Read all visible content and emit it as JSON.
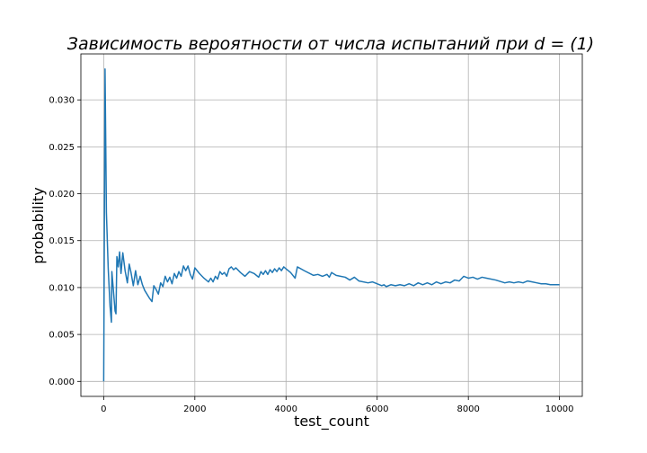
{
  "chart_data": {
    "type": "line",
    "title": "Зависимость вероятности от числа испытаний при d = (1)",
    "xlabel": "test_count",
    "ylabel": "probability",
    "xlim": [
      -500,
      10500
    ],
    "ylim": [
      -0.0016,
      0.0349
    ],
    "grid": true,
    "xticks": [
      0,
      2000,
      4000,
      6000,
      8000,
      10000
    ],
    "yticks": [
      0.0,
      0.005,
      0.01,
      0.015,
      0.02,
      0.025,
      0.03
    ],
    "xtick_labels": [
      "0",
      "2000",
      "4000",
      "6000",
      "8000",
      "10000"
    ],
    "ytick_labels": [
      "0.000",
      "0.005",
      "0.010",
      "0.015",
      "0.020",
      "0.025",
      "0.030"
    ],
    "series": [
      {
        "color": "#1f77b4",
        "points": [
          [
            1,
            0.0
          ],
          [
            30,
            0.0333
          ],
          [
            60,
            0.018
          ],
          [
            100,
            0.012
          ],
          [
            140,
            0.008
          ],
          [
            170,
            0.0063
          ],
          [
            180,
            0.0117
          ],
          [
            200,
            0.0105
          ],
          [
            250,
            0.0075
          ],
          [
            270,
            0.0072
          ],
          [
            290,
            0.0133
          ],
          [
            320,
            0.0122
          ],
          [
            350,
            0.0138
          ],
          [
            380,
            0.0115
          ],
          [
            420,
            0.0137
          ],
          [
            470,
            0.0118
          ],
          [
            520,
            0.0105
          ],
          [
            560,
            0.0125
          ],
          [
            600,
            0.0116
          ],
          [
            650,
            0.0102
          ],
          [
            700,
            0.0118
          ],
          [
            750,
            0.0103
          ],
          [
            800,
            0.0112
          ],
          [
            850,
            0.0103
          ],
          [
            900,
            0.0097
          ],
          [
            1000,
            0.0089
          ],
          [
            1060,
            0.0085
          ],
          [
            1100,
            0.0102
          ],
          [
            1150,
            0.0098
          ],
          [
            1200,
            0.0093
          ],
          [
            1250,
            0.0105
          ],
          [
            1300,
            0.0101
          ],
          [
            1350,
            0.0112
          ],
          [
            1400,
            0.0106
          ],
          [
            1450,
            0.0111
          ],
          [
            1500,
            0.0104
          ],
          [
            1550,
            0.0115
          ],
          [
            1600,
            0.011
          ],
          [
            1650,
            0.0117
          ],
          [
            1700,
            0.0112
          ],
          [
            1750,
            0.0123
          ],
          [
            1800,
            0.0118
          ],
          [
            1850,
            0.0123
          ],
          [
            1900,
            0.0114
          ],
          [
            1950,
            0.0109
          ],
          [
            2000,
            0.0121
          ],
          [
            2100,
            0.0115
          ],
          [
            2200,
            0.011
          ],
          [
            2300,
            0.0106
          ],
          [
            2350,
            0.011
          ],
          [
            2400,
            0.0106
          ],
          [
            2450,
            0.0112
          ],
          [
            2500,
            0.0109
          ],
          [
            2550,
            0.0117
          ],
          [
            2600,
            0.0114
          ],
          [
            2650,
            0.0116
          ],
          [
            2700,
            0.0112
          ],
          [
            2750,
            0.012
          ],
          [
            2800,
            0.0122
          ],
          [
            2850,
            0.0119
          ],
          [
            2900,
            0.0121
          ],
          [
            3000,
            0.0116
          ],
          [
            3100,
            0.0112
          ],
          [
            3200,
            0.0117
          ],
          [
            3300,
            0.0115
          ],
          [
            3400,
            0.0111
          ],
          [
            3450,
            0.0117
          ],
          [
            3500,
            0.0114
          ],
          [
            3550,
            0.0118
          ],
          [
            3600,
            0.0114
          ],
          [
            3650,
            0.0119
          ],
          [
            3700,
            0.0116
          ],
          [
            3750,
            0.012
          ],
          [
            3800,
            0.0117
          ],
          [
            3850,
            0.0121
          ],
          [
            3900,
            0.0118
          ],
          [
            3950,
            0.0122
          ],
          [
            4000,
            0.012
          ],
          [
            4100,
            0.0116
          ],
          [
            4200,
            0.011
          ],
          [
            4250,
            0.0122
          ],
          [
            4400,
            0.0118
          ],
          [
            4600,
            0.0113
          ],
          [
            4700,
            0.0114
          ],
          [
            4800,
            0.0112
          ],
          [
            4900,
            0.0114
          ],
          [
            4950,
            0.0111
          ],
          [
            5000,
            0.0116
          ],
          [
            5100,
            0.0113
          ],
          [
            5300,
            0.0111
          ],
          [
            5400,
            0.0108
          ],
          [
            5500,
            0.0111
          ],
          [
            5600,
            0.0107
          ],
          [
            5800,
            0.0105
          ],
          [
            5900,
            0.0106
          ],
          [
            6100,
            0.0102
          ],
          [
            6150,
            0.0103
          ],
          [
            6200,
            0.0101
          ],
          [
            6300,
            0.0103
          ],
          [
            6400,
            0.0102
          ],
          [
            6500,
            0.0103
          ],
          [
            6600,
            0.0102
          ],
          [
            6700,
            0.0104
          ],
          [
            6800,
            0.0102
          ],
          [
            6900,
            0.0105
          ],
          [
            7000,
            0.0103
          ],
          [
            7100,
            0.0105
          ],
          [
            7200,
            0.0103
          ],
          [
            7300,
            0.0106
          ],
          [
            7400,
            0.0104
          ],
          [
            7500,
            0.0106
          ],
          [
            7600,
            0.0105
          ],
          [
            7700,
            0.0108
          ],
          [
            7800,
            0.0107
          ],
          [
            7900,
            0.0112
          ],
          [
            8000,
            0.011
          ],
          [
            8100,
            0.0111
          ],
          [
            8200,
            0.0109
          ],
          [
            8300,
            0.0111
          ],
          [
            8400,
            0.011
          ],
          [
            8600,
            0.0108
          ],
          [
            8800,
            0.0105
          ],
          [
            8900,
            0.0106
          ],
          [
            9000,
            0.0105
          ],
          [
            9100,
            0.0106
          ],
          [
            9200,
            0.0105
          ],
          [
            9300,
            0.0107
          ],
          [
            9400,
            0.0106
          ],
          [
            9500,
            0.0105
          ],
          [
            9600,
            0.0104
          ],
          [
            9700,
            0.0104
          ],
          [
            9800,
            0.0103
          ],
          [
            9900,
            0.0103
          ],
          [
            10000,
            0.0103
          ]
        ]
      }
    ]
  }
}
